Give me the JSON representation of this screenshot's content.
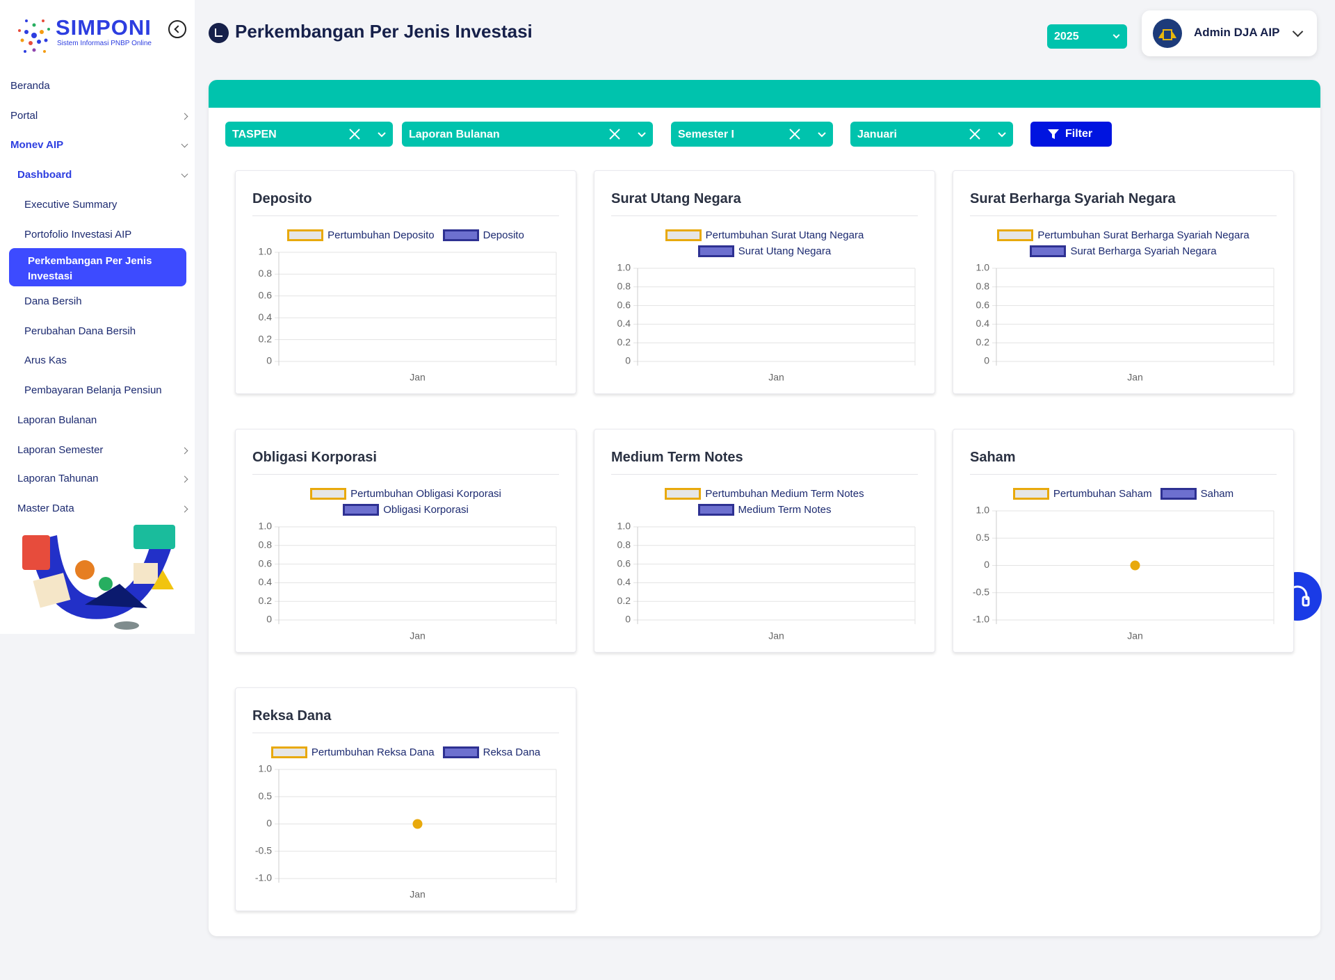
{
  "sidebar": {
    "brand": "SIMPONI",
    "tagline": "Sistem Informasi PNBP Online",
    "menu": [
      "Beranda",
      "Portal",
      "Monev AIP",
      "Dashboard",
      "Executive Summary",
      "Portofolio Investasi AIP",
      "Perkembangan Per Jenis Investasi",
      "Dana Bersih",
      "Perubahan Dana Bersih",
      "Arus Kas",
      "Pembayaran Belanja Pensiun",
      "Laporan Bulanan",
      "Laporan Semester",
      "Laporan Tahunan",
      "Master Data"
    ]
  },
  "header": {
    "title": "Perkembangan Per Jenis Investasi",
    "year": "2025",
    "user": "Admin DJA AIP"
  },
  "filters": {
    "items": [
      "TASPEN",
      "Laporan Bulanan",
      "Semester I",
      "Januari"
    ],
    "button": "Filter"
  },
  "charts": [
    {
      "type": "line",
      "title": "Deposito",
      "categories": [
        "Jan"
      ],
      "series": [
        {
          "name": "Pertumbuhan Deposito",
          "color": "#e8a90c",
          "values": [
            null
          ]
        },
        {
          "name": "Deposito",
          "color": "#2e3192",
          "values": [
            null
          ]
        }
      ],
      "ylim": [
        0,
        1
      ],
      "yticks": [
        0,
        0.2,
        0.4,
        0.6,
        0.8,
        {
          "value": 1,
          "label": "1.0"
        }
      ],
      "grid": true
    },
    {
      "type": "line",
      "title": "Surat Utang Negara",
      "categories": [
        "Jan"
      ],
      "series": [
        {
          "name": "Pertumbuhan Surat Utang Negara",
          "color": "#e8a90c",
          "values": [
            null
          ]
        },
        {
          "name": "Surat Utang Negara",
          "color": "#2e3192",
          "values": [
            null
          ]
        }
      ],
      "ylim": [
        0,
        1
      ],
      "yticks": [
        0,
        0.2,
        0.4,
        0.6,
        0.8,
        {
          "value": 1,
          "label": "1.0"
        }
      ],
      "grid": true
    },
    {
      "type": "line",
      "title": "Surat Berharga Syariah Negara",
      "categories": [
        "Jan"
      ],
      "series": [
        {
          "name": "Pertumbuhan Surat Berharga Syariah Negara",
          "color": "#e8a90c",
          "values": [
            null
          ]
        },
        {
          "name": "Surat Berharga Syariah Negara",
          "color": "#2e3192",
          "values": [
            null
          ]
        }
      ],
      "ylim": [
        0,
        1
      ],
      "yticks": [
        0,
        0.2,
        0.4,
        0.6,
        0.8,
        {
          "value": 1,
          "label": "1.0"
        }
      ],
      "grid": true
    },
    {
      "type": "line",
      "title": "Obligasi Korporasi",
      "categories": [
        "Jan"
      ],
      "series": [
        {
          "name": "Pertumbuhan Obligasi Korporasi",
          "color": "#e8a90c",
          "values": [
            null
          ]
        },
        {
          "name": "Obligasi Korporasi",
          "color": "#2e3192",
          "values": [
            null
          ]
        }
      ],
      "ylim": [
        0,
        1
      ],
      "yticks": [
        0,
        0.2,
        0.4,
        0.6,
        0.8,
        {
          "value": 1,
          "label": "1.0"
        }
      ],
      "grid": true
    },
    {
      "type": "line",
      "title": "Medium Term Notes",
      "categories": [
        "Jan"
      ],
      "series": [
        {
          "name": "Pertumbuhan Medium Term Notes",
          "color": "#e8a90c",
          "values": [
            null
          ]
        },
        {
          "name": "Medium Term Notes",
          "color": "#2e3192",
          "values": [
            null
          ]
        }
      ],
      "ylim": [
        0,
        1
      ],
      "yticks": [
        0,
        0.2,
        0.4,
        0.6,
        0.8,
        {
          "value": 1,
          "label": "1.0"
        }
      ],
      "grid": true
    },
    {
      "type": "line",
      "title": "Saham",
      "categories": [
        "Jan"
      ],
      "series": [
        {
          "name": "Pertumbuhan Saham",
          "color": "#e8a90c",
          "values": [
            0
          ]
        },
        {
          "name": "Saham",
          "color": "#2e3192",
          "values": [
            null
          ]
        }
      ],
      "ylim": [
        -1,
        1
      ],
      "yticks": [
        {
          "value": -1,
          "label": "-1.0"
        },
        -0.5,
        0,
        0.5,
        {
          "value": 1,
          "label": "1.0"
        }
      ],
      "grid": true
    },
    {
      "type": "line",
      "title": "Reksa Dana",
      "categories": [
        "Jan"
      ],
      "series": [
        {
          "name": "Pertumbuhan Reksa Dana",
          "color": "#e8a90c",
          "values": [
            0
          ]
        },
        {
          "name": "Reksa Dana",
          "color": "#2e3192",
          "values": [
            null
          ]
        }
      ],
      "ylim": [
        -1,
        1
      ],
      "yticks": [
        {
          "value": -1,
          "label": "-1.0"
        },
        -0.5,
        0,
        0.5,
        {
          "value": 1,
          "label": "1.0"
        }
      ],
      "grid": true
    }
  ]
}
